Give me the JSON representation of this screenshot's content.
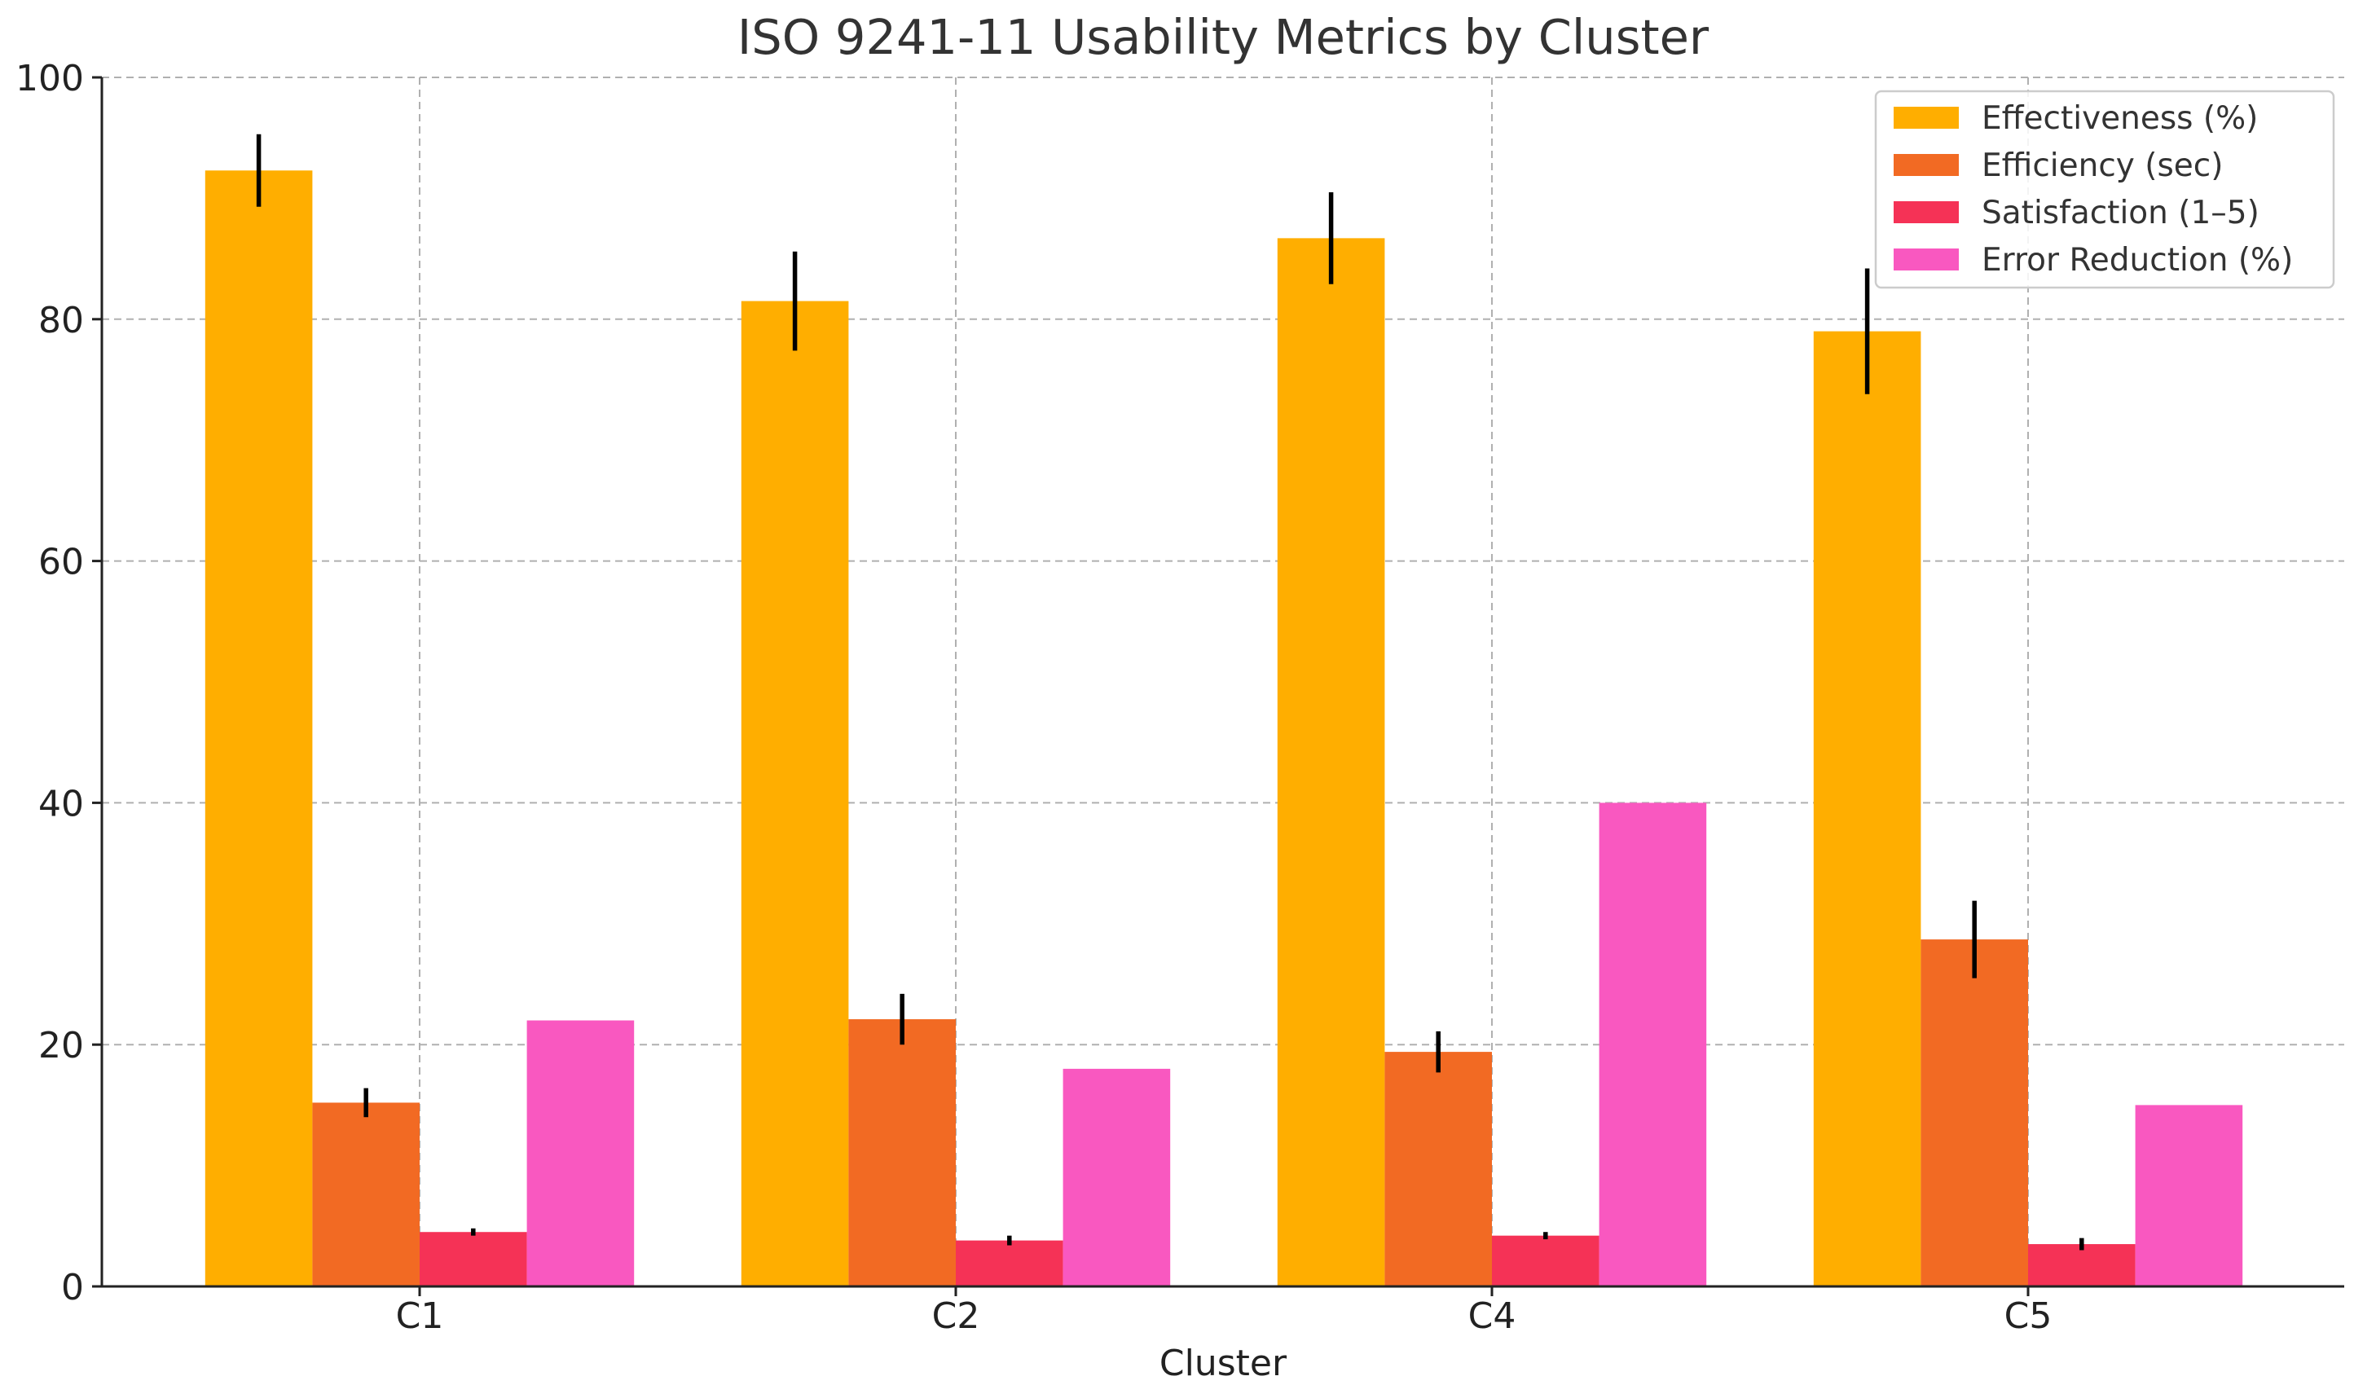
{
  "chart_data": {
    "type": "bar",
    "title": "ISO 9241-11 Usability Metrics by Cluster",
    "xlabel": "Cluster",
    "ylabel": "",
    "ylim": [
      0,
      100
    ],
    "yticks": [
      0,
      20,
      40,
      60,
      80,
      100
    ],
    "grid": true,
    "legend_position": "top-right",
    "categories": [
      "C1",
      "C2",
      "C4",
      "C5"
    ],
    "series": [
      {
        "name": "Effectiveness (%)",
        "color": "#FFAE00",
        "values": [
          92.3,
          81.5,
          86.7,
          79.0
        ],
        "errors": [
          3.0,
          4.1,
          3.8,
          5.2
        ]
      },
      {
        "name": "Efficiency (sec)",
        "color": "#F26A23",
        "values": [
          15.2,
          22.1,
          19.4,
          28.7
        ],
        "errors": [
          1.2,
          2.1,
          1.7,
          3.2
        ]
      },
      {
        "name": "Satisfaction (1–5)",
        "color": "#F53256",
        "values": [
          4.5,
          3.8,
          4.2,
          3.5
        ],
        "errors": [
          0.3,
          0.4,
          0.3,
          0.5
        ]
      },
      {
        "name": "Error Reduction (%)",
        "color": "#F958C0",
        "values": [
          22,
          18,
          40,
          15
        ],
        "errors": null
      }
    ]
  }
}
